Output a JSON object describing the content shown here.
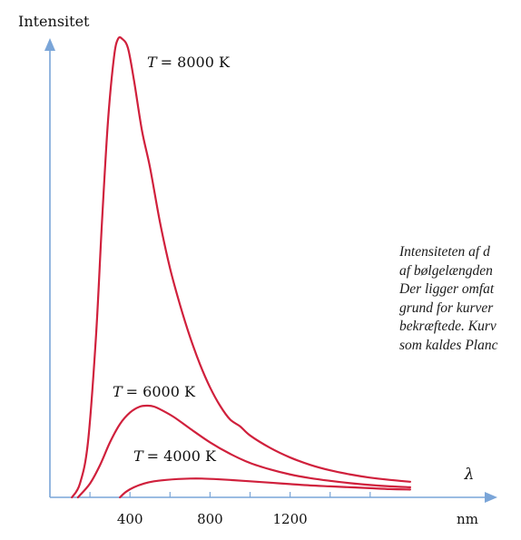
{
  "chart_data": {
    "type": "line",
    "ylabel": "Intensitet",
    "xlabel": "nm",
    "xsymbol": "λ",
    "xticks": [
      400,
      800,
      1200
    ],
    "xticks_minor": [
      200,
      400,
      600,
      800,
      1000,
      1200,
      1400,
      1600
    ],
    "xlim": [
      0,
      2200
    ],
    "ylim": [
      0,
      1.08
    ],
    "grid": false,
    "colors": {
      "curve": "#d0203c",
      "axis": "#7aa5d8"
    },
    "series": [
      {
        "name": "T = 8000 K",
        "name_symbol": "T",
        "name_value": "= 8000 K",
        "x": [
          110,
          150,
          190,
          230,
          260,
          290,
          320,
          340,
          362,
          390,
          420,
          460,
          500,
          550,
          600,
          650,
          700,
          750,
          800,
          850,
          900,
          950,
          1000,
          1100,
          1200,
          1300,
          1400,
          1500,
          1600,
          1700,
          1800
        ],
        "y": [
          0.0,
          0.03,
          0.12,
          0.35,
          0.6,
          0.82,
          0.96,
          1.0,
          1.0,
          0.98,
          0.91,
          0.8,
          0.72,
          0.6,
          0.5,
          0.42,
          0.35,
          0.29,
          0.24,
          0.2,
          0.17,
          0.155,
          0.135,
          0.108,
          0.087,
          0.071,
          0.059,
          0.05,
          0.043,
          0.038,
          0.034
        ]
      },
      {
        "name": "T = 6000 K",
        "name_symbol": "T",
        "name_value": "= 6000 K",
        "x": [
          140,
          200,
          250,
          300,
          350,
          400,
          450,
          490,
          520,
          560,
          620,
          700,
          800,
          900,
          1000,
          1100,
          1200,
          1300,
          1400,
          1500,
          1600,
          1700,
          1800
        ],
        "y": [
          0.0,
          0.03,
          0.07,
          0.12,
          0.16,
          0.185,
          0.198,
          0.2,
          0.198,
          0.19,
          0.175,
          0.15,
          0.12,
          0.095,
          0.075,
          0.061,
          0.05,
          0.042,
          0.036,
          0.031,
          0.027,
          0.024,
          0.022
        ]
      },
      {
        "name": "T = 4000 K",
        "name_symbol": "T",
        "name_value": "= 4000 K",
        "x": [
          350,
          380,
          420,
          470,
          520,
          580,
          640,
          700,
          760,
          820,
          900,
          1000,
          1100,
          1200,
          1300,
          1400,
          1500,
          1600,
          1700,
          1800
        ],
        "y": [
          0.0,
          0.012,
          0.022,
          0.03,
          0.035,
          0.038,
          0.04,
          0.041,
          0.041,
          0.04,
          0.038,
          0.035,
          0.032,
          0.029,
          0.026,
          0.024,
          0.022,
          0.02,
          0.018,
          0.017
        ]
      }
    ]
  },
  "caption": {
    "lines": [
      "Intensiteten af d",
      "af bølgelængden",
      "Der ligger omfat",
      "grund for kurver",
      "bekræftede. Kurv",
      "som kaldes Planc"
    ]
  }
}
